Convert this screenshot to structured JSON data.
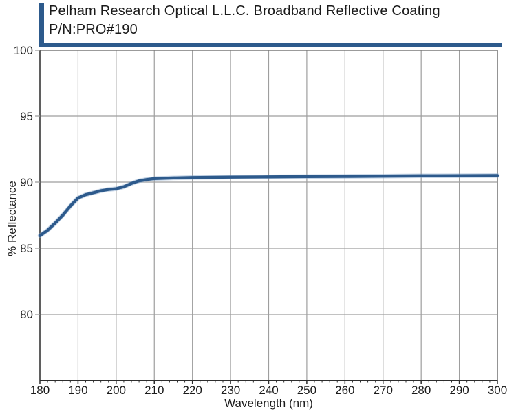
{
  "header": {
    "title_line1": "Pelham Research Optical L.L.C. Broadband Reflective Coating",
    "title_line2": "P/N:PRO#190"
  },
  "colors": {
    "accent_blue": "#2d5a8c",
    "curve_blue": "#2d5a8c",
    "curve_halo": "rgba(125,160,200,0.45)",
    "grid_gray": "#9e9e9e",
    "frame_gray": "#7a7a7a",
    "left_axis_gray": "#5f5f5f",
    "bottom_axis_dark": "#2d2d2d",
    "text_dark": "#1b1b1b"
  },
  "chart_data": {
    "type": "line",
    "title": "Pelham Research Optical L.L.C. Broadband Reflective Coating P/N:PRO#190",
    "xlabel": "Wavelength (nm)",
    "ylabel": "% Reflectance",
    "xlim": [
      180,
      300
    ],
    "ylim": [
      75,
      100
    ],
    "xticks": [
      180,
      190,
      200,
      210,
      220,
      230,
      240,
      250,
      260,
      270,
      280,
      290,
      300
    ],
    "yticks": [
      80,
      85,
      90,
      95,
      100
    ],
    "x_minor_tick_step": 2,
    "grid": true,
    "legend_position": "none",
    "series": [
      {
        "name": "% Reflectance",
        "x": [
          180,
          182,
          184,
          186,
          188,
          190,
          192,
          194,
          196,
          198,
          200,
          202,
          204,
          206,
          208,
          210,
          215,
          220,
          230,
          240,
          250,
          260,
          270,
          280,
          290,
          300
        ],
        "y": [
          85.95,
          86.35,
          86.9,
          87.5,
          88.2,
          88.8,
          89.05,
          89.2,
          89.35,
          89.45,
          89.5,
          89.65,
          89.9,
          90.1,
          90.2,
          90.27,
          90.32,
          90.35,
          90.38,
          90.4,
          90.42,
          90.44,
          90.46,
          90.48,
          90.49,
          90.5
        ]
      }
    ]
  }
}
